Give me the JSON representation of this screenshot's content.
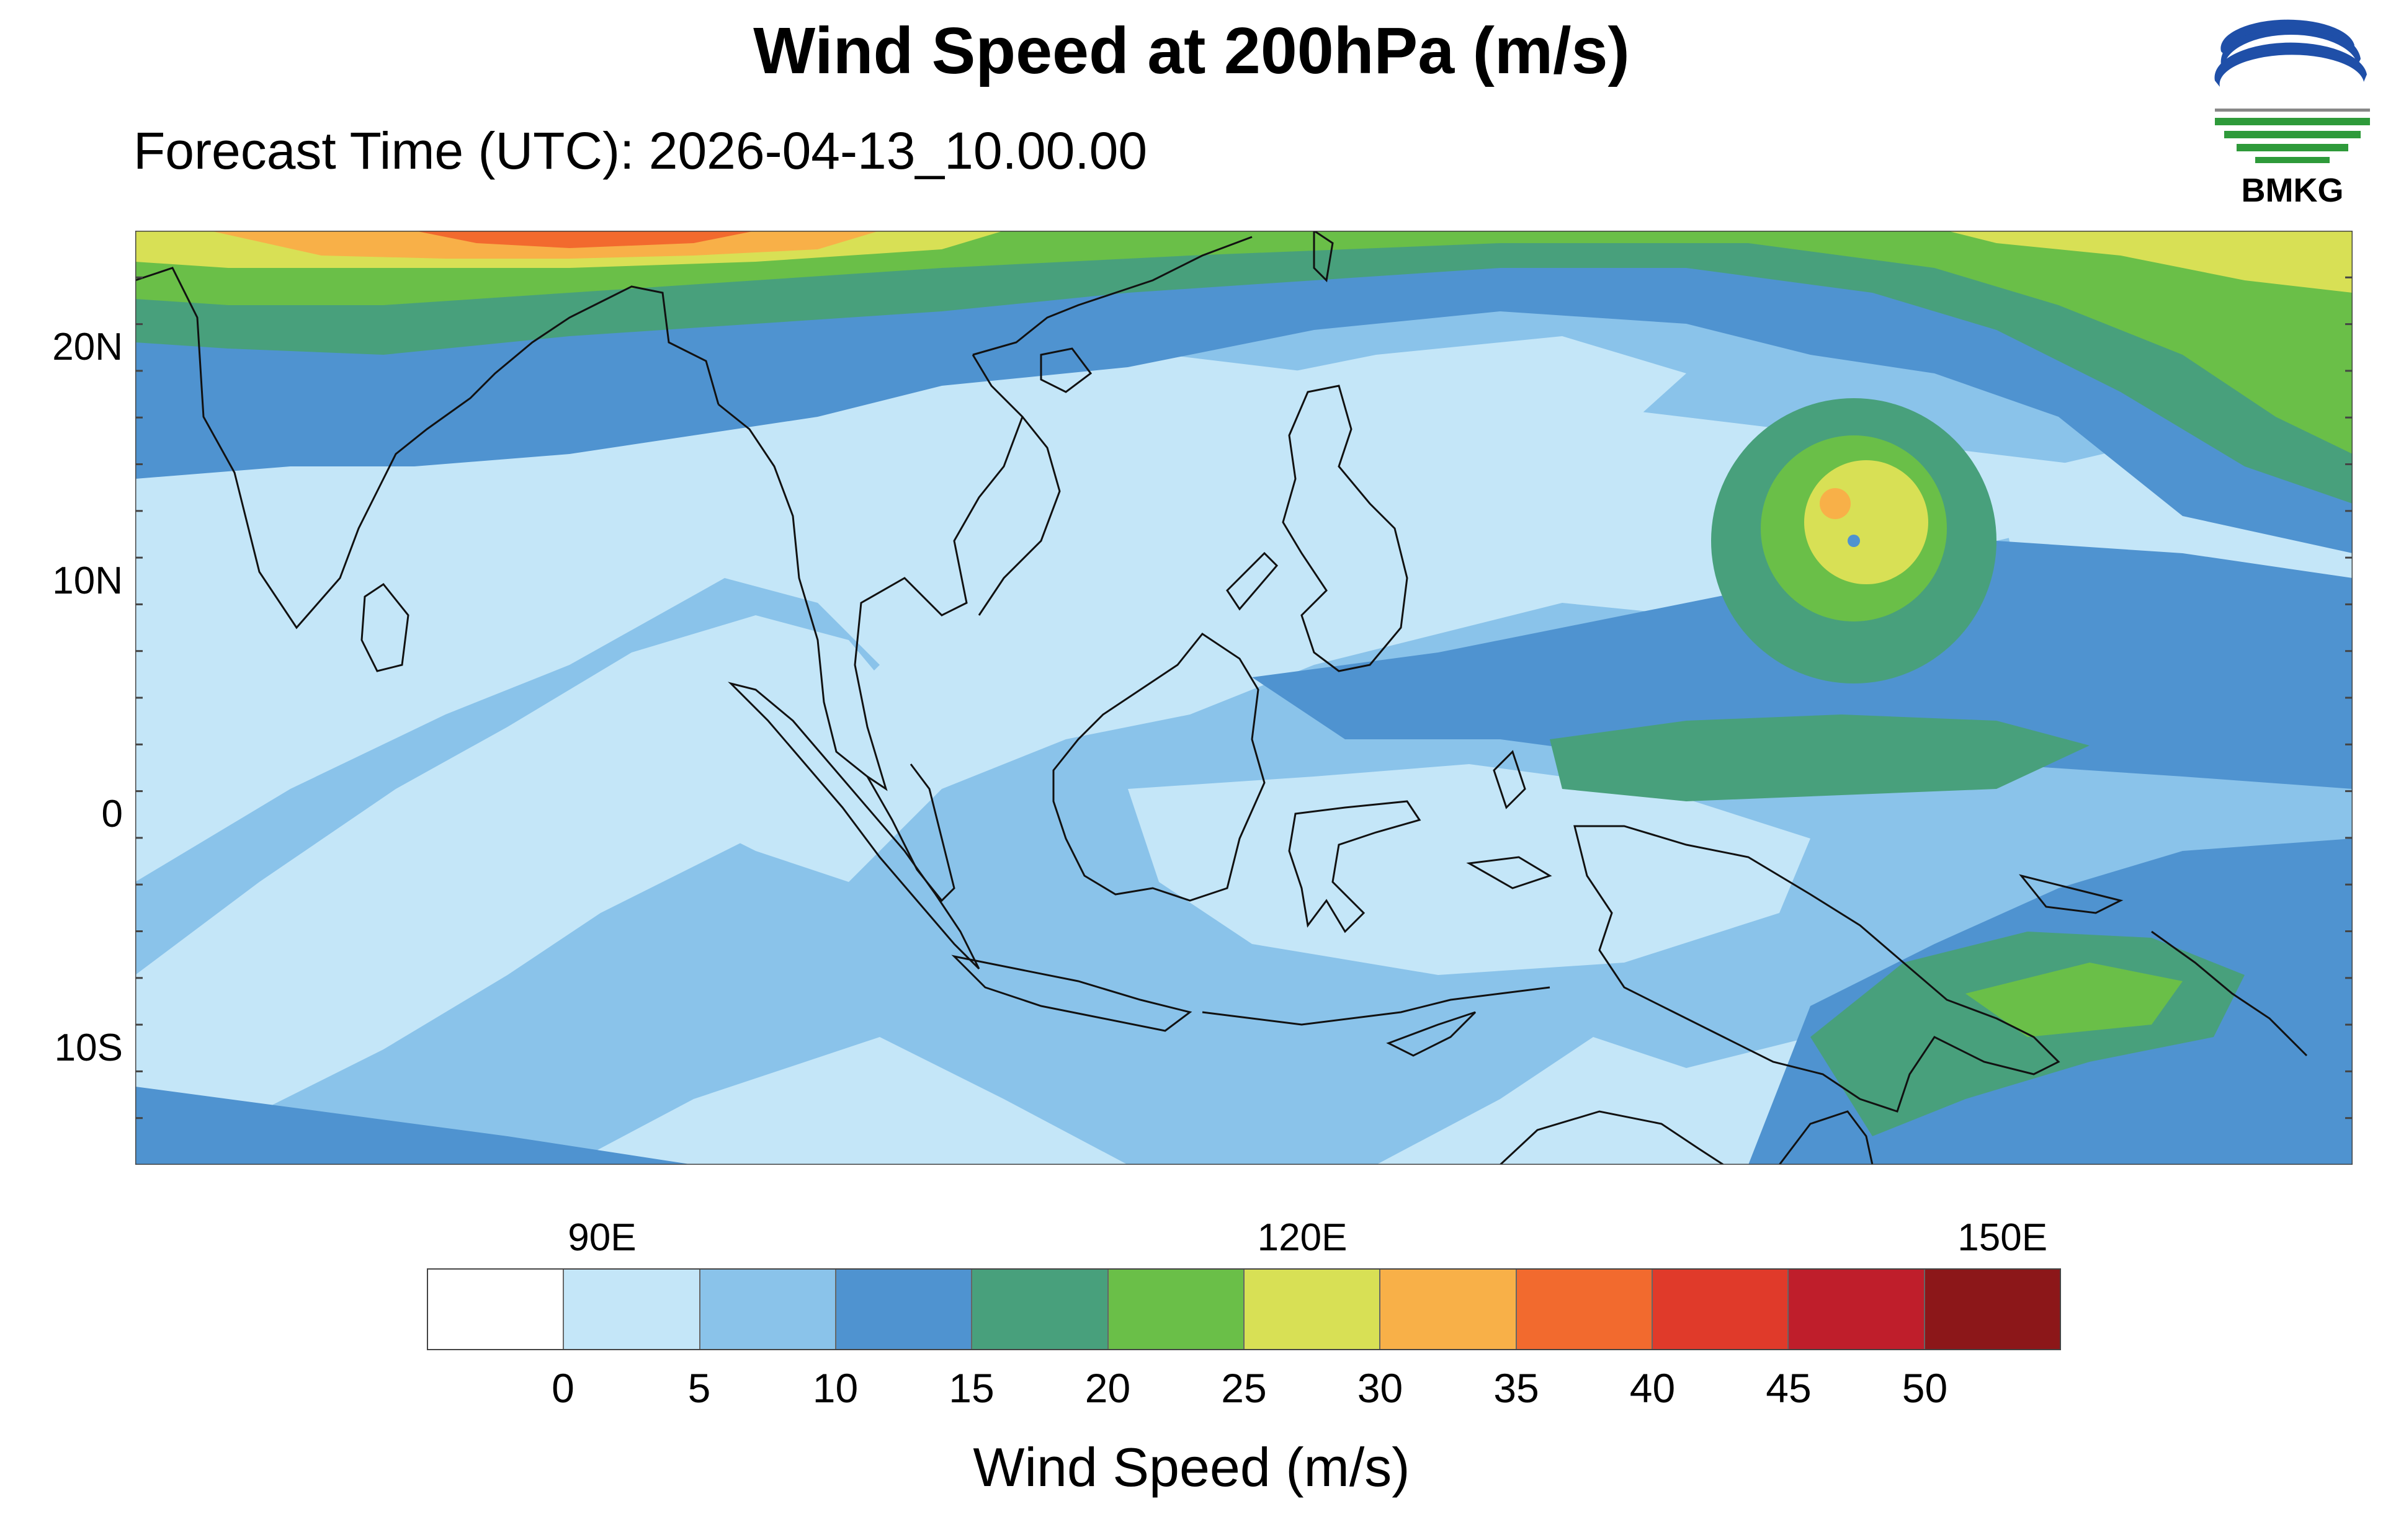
{
  "header": {
    "title": "Wind Speed at 200hPa (m/s)",
    "subtitle": "Forecast Time (UTC): 2026-04-13_10.00.00"
  },
  "logo": {
    "text": "BMKG",
    "icon": "bmkg-logo-icon"
  },
  "map": {
    "type": "contour-fill",
    "lon_range": [
      70,
      165
    ],
    "lat_range": [
      -15,
      25
    ],
    "lat_ticks": [
      {
        "value": 20,
        "label": "20N"
      },
      {
        "value": 10,
        "label": "10N"
      },
      {
        "value": 0,
        "label": "0"
      },
      {
        "value": -10,
        "label": "10S"
      }
    ],
    "lon_ticks": [
      {
        "value": 90,
        "label": "90E"
      },
      {
        "value": 120,
        "label": "120E"
      },
      {
        "value": 150,
        "label": "150E"
      }
    ],
    "background_value_class": 1
  },
  "colorbar": {
    "title": "Wind Speed (m/s)",
    "colors": [
      "#ffffff",
      "#c4e6f8",
      "#8ac3ea",
      "#4f93d0",
      "#48a07c",
      "#6abf48",
      "#d8e055",
      "#f8b048",
      "#f26a2e",
      "#e03a2a",
      "#bf1e2b",
      "#8c1719"
    ],
    "tick_labels": [
      "0",
      "5",
      "10",
      "15",
      "20",
      "25",
      "30",
      "35",
      "40",
      "45",
      "50"
    ]
  }
}
